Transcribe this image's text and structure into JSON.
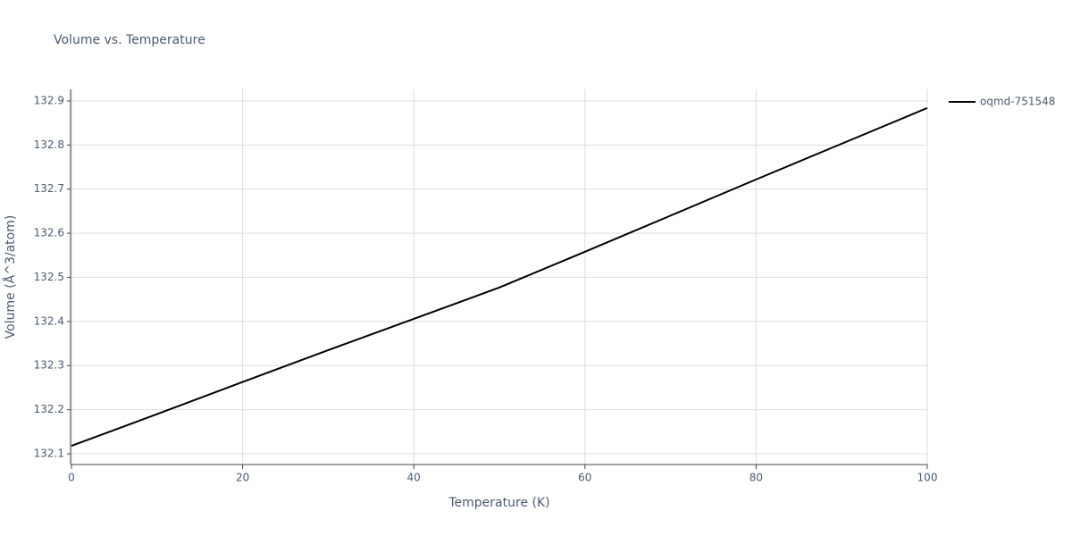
{
  "chart_data": {
    "type": "line",
    "title": "Volume vs. Temperature",
    "x_label": "Temperature (K)",
    "y_label": "Volume (Å^3/atom)",
    "x": [
      0,
      10,
      20,
      30,
      40,
      50,
      60,
      70,
      80,
      90,
      100
    ],
    "series": [
      {
        "name": "oqmd-751548",
        "color": "#000000",
        "values": [
          132.118,
          132.19,
          132.263,
          132.335,
          132.406,
          132.477,
          132.558,
          132.64,
          132.722,
          132.803,
          132.884
        ]
      }
    ],
    "xlim": [
      0,
      100
    ],
    "xticks": [
      0,
      20,
      40,
      60,
      80,
      100
    ],
    "ylim": [
      132.0757,
      132.9263
    ],
    "yticks": [
      132.1,
      132.2,
      132.3,
      132.4,
      132.5,
      132.6,
      132.7,
      132.8,
      132.9
    ],
    "grid": true,
    "legend": "right"
  }
}
